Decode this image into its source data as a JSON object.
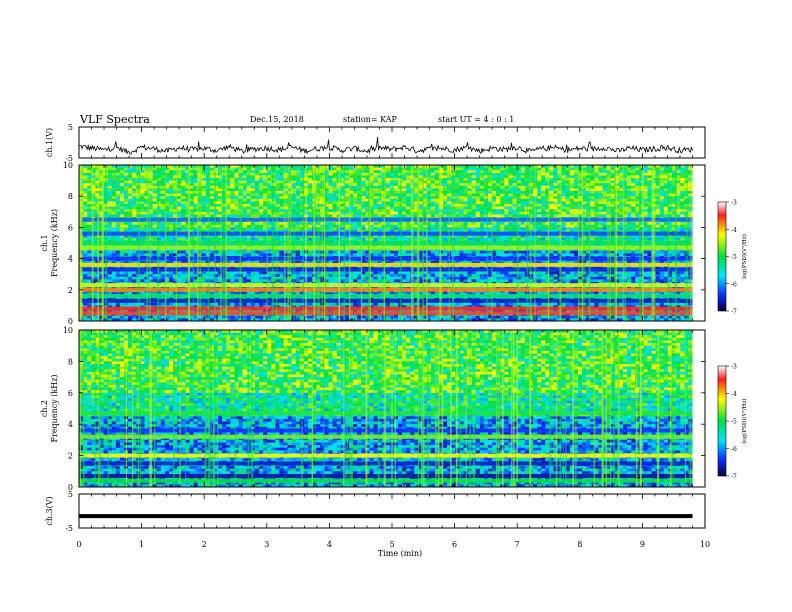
{
  "header": {
    "title": "VLF Spectra",
    "date": "Dec.15, 2018",
    "station": "station= KAP",
    "start_ut": "start  UT =   4 : 0  : 1"
  },
  "chart_data": [
    {
      "type": "line",
      "panel": "ch1-waveform",
      "ylabel": "ch.1(V)",
      "ylim": [
        -5,
        5
      ],
      "yticks": [
        5,
        -5
      ],
      "xlim": [
        0,
        10
      ],
      "series": [
        {
          "values": [
            -1.2,
            -1.8,
            -2.4,
            -1.6,
            -3.2,
            -1.5,
            -2.0,
            -2.8,
            -1.7,
            -2.3,
            -1.9,
            -2.6,
            -1.4,
            -2.9,
            -2.1,
            -1.8,
            -2.4,
            -1.5,
            -2.7,
            -2.0,
            -1.6,
            -2.5,
            -1.9,
            -2.8,
            -1.7,
            -2.2,
            -1.5,
            -2.6,
            -2.1,
            -1.9,
            -2.4,
            -1.6,
            -2.7,
            -1.8,
            -2.3,
            -1.5,
            -2.9,
            -2.0,
            -1.7,
            -2.5,
            -1.9,
            -2.2,
            -1.6,
            -2.8,
            -1.8,
            -2.4,
            -2.0,
            -1.7,
            -2.6,
            -2.2
          ]
        }
      ]
    },
    {
      "type": "heatmap",
      "panel": "ch1-spectrogram",
      "ylabel": "ch.1\nFrequency  (kHz)",
      "ylim": [
        0,
        10
      ],
      "yticks": [
        0,
        2,
        4,
        6,
        8,
        10
      ],
      "xlim": [
        0,
        9.8
      ],
      "colorbar": {
        "label": "log(PSD)(V²/Hz)",
        "ticks": [
          -3,
          -4,
          -5,
          -6,
          -7
        ],
        "range": [
          -7,
          -3
        ]
      },
      "bands_khz": [
        {
          "freq": 0.5,
          "psd": -3.6
        },
        {
          "freq": 0.8,
          "psd": -3.5
        },
        {
          "freq": 1.3,
          "psd": -6.6
        },
        {
          "freq": 1.6,
          "psd": -5.2
        },
        {
          "freq": 2.0,
          "psd": -3.8
        },
        {
          "freq": 2.3,
          "psd": -4.3
        },
        {
          "freq": 3.3,
          "psd": -6.5
        },
        {
          "freq": 3.6,
          "psd": -4.1
        },
        {
          "freq": 4.0,
          "psd": -6.4
        },
        {
          "freq": 4.7,
          "psd": -4.5
        },
        {
          "freq": 5.0,
          "psd": -5.1
        },
        {
          "freq": 5.6,
          "psd": -6.3
        },
        {
          "freq": 6.5,
          "psd": -6.2
        }
      ]
    },
    {
      "type": "heatmap",
      "panel": "ch2-spectrogram",
      "ylabel": "ch.2\nFrequency  (kHz)",
      "ylim": [
        0,
        10
      ],
      "yticks": [
        0,
        2,
        4,
        6,
        8,
        10
      ],
      "xlim": [
        0,
        9.8
      ],
      "colorbar": {
        "label": "log(PSD)(V²/Hz)",
        "ticks": [
          -3,
          -4,
          -5,
          -6,
          -7
        ],
        "range": [
          -7,
          -3
        ]
      },
      "bands_khz": [
        {
          "freq": 0.4,
          "psd": -5.0
        },
        {
          "freq": 0.7,
          "psd": -6.7
        },
        {
          "freq": 1.5,
          "psd": -6.6
        },
        {
          "freq": 2.0,
          "psd": -4.2
        },
        {
          "freq": 3.2,
          "psd": -4.6
        },
        {
          "freq": 3.6,
          "psd": -6.4
        },
        {
          "freq": 4.7,
          "psd": -4.9
        }
      ]
    },
    {
      "type": "line",
      "panel": "ch3-waveform",
      "ylabel": "ch.3(V)",
      "ylim": [
        -5,
        5
      ],
      "yticks": [
        5,
        -5
      ],
      "xlim": [
        0,
        10
      ],
      "series": [
        {
          "values": [
            -1.5,
            -1.5
          ]
        }
      ]
    }
  ],
  "x_axis": {
    "label": "Time  (min)",
    "ticks": [
      "0",
      "1",
      "2",
      "3",
      "4",
      "5",
      "6",
      "7",
      "8",
      "9",
      "10"
    ]
  }
}
